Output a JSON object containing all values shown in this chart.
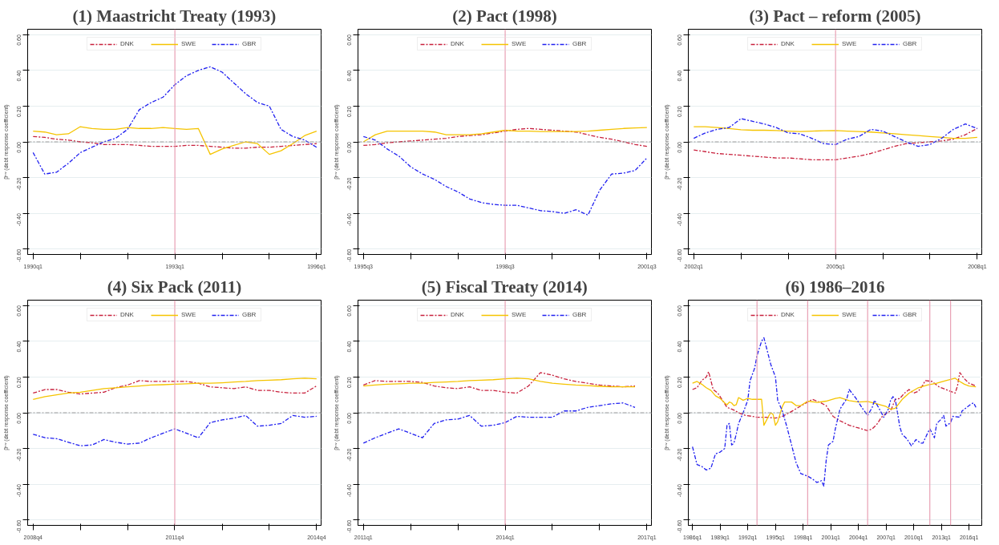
{
  "chart_data": [
    {
      "type": "line",
      "title": "(1) Maastricht Treaty (1993)",
      "ylabel": "βʳʷ (debt response coefficient)",
      "grid": "y",
      "legend": "top",
      "x": [
        "1990-01",
        "1990-04",
        "1990-07",
        "1990-10",
        "1991-01",
        "1991-04",
        "1991-07",
        "1991-10",
        "1992-01",
        "1992-04",
        "1992-07",
        "1992-10",
        "1993-01",
        "1993-04",
        "1993-07",
        "1993-10",
        "1994-01",
        "1994-04",
        "1994-07",
        "1994-10",
        "1995-01",
        "1995-04",
        "1995-07",
        "1995-10",
        "1996-01"
      ],
      "xlim": [
        "1989-11-20",
        "1996-02-05"
      ],
      "xticks": [
        {
          "value": "1990-01",
          "label": "1990q1"
        },
        {
          "value": "1991-01",
          "label": null
        },
        {
          "value": "1992-01",
          "label": null
        },
        {
          "value": "1993-01",
          "label": "1993q1"
        },
        {
          "value": "1994-01",
          "label": null
        },
        {
          "value": "1995-01",
          "label": null
        },
        {
          "value": "1996-01",
          "label": "1996q1"
        }
      ],
      "ylim": [
        -0.63,
        0.63
      ],
      "yticks": [
        {
          "value": -0.6,
          "label": "-0.60"
        },
        {
          "value": -0.4,
          "label": "-0.40"
        },
        {
          "value": -0.2,
          "label": "-0.20"
        },
        {
          "value": 0,
          "label": "0.00"
        },
        {
          "value": 0.2,
          "label": "0.20"
        },
        {
          "value": 0.4,
          "label": "0.40"
        },
        {
          "value": 0.6,
          "label": "0.60"
        }
      ],
      "ref_lines": [
        {
          "axis": "x",
          "value": "1993-01",
          "color": "#e8a0b4",
          "line_style": "solid"
        },
        {
          "axis": "y",
          "value": 0,
          "color": "#999999",
          "line_style": "dashed"
        }
      ],
      "series": [
        {
          "name": "DNK",
          "color": "#c8203c",
          "line_style": "dashed",
          "values": [
            0.03,
            0.025,
            0.015,
            0.01,
            0.0,
            -0.005,
            -0.015,
            -0.015,
            -0.015,
            -0.02,
            -0.025,
            -0.025,
            -0.025,
            -0.02,
            -0.02,
            -0.025,
            -0.03,
            -0.035,
            -0.035,
            -0.03,
            -0.03,
            -0.025,
            -0.02,
            -0.015,
            -0.01
          ]
        },
        {
          "name": "SWE",
          "color": "#f5c400",
          "line_style": "solid",
          "values": [
            0.06,
            0.055,
            0.04,
            0.045,
            0.085,
            0.075,
            0.07,
            0.07,
            0.08,
            0.075,
            0.075,
            0.08,
            0.075,
            0.07,
            0.075,
            -0.07,
            -0.04,
            -0.02,
            0.0,
            -0.01,
            -0.07,
            -0.05,
            -0.01,
            0.035,
            0.06
          ]
        },
        {
          "name": "GBR",
          "color": "#2020f0",
          "line_style": "dashed",
          "values": [
            -0.06,
            -0.18,
            -0.17,
            -0.12,
            -0.06,
            -0.03,
            0.0,
            0.02,
            0.07,
            0.18,
            0.22,
            0.25,
            0.32,
            0.37,
            0.4,
            0.42,
            0.39,
            0.33,
            0.27,
            0.22,
            0.2,
            0.07,
            0.03,
            0.01,
            -0.03
          ]
        }
      ]
    },
    {
      "type": "line",
      "title": "(2) Pact (1998)",
      "ylabel": "βʳʷ (debt response coefficient)",
      "grid": "y",
      "legend": "top",
      "x": [
        "1995-07",
        "1995-10",
        "1996-01",
        "1996-04",
        "1996-07",
        "1996-10",
        "1997-01",
        "1997-04",
        "1997-07",
        "1997-10",
        "1998-01",
        "1998-04",
        "1998-07",
        "1998-10",
        "1999-01",
        "1999-04",
        "1999-07",
        "1999-10",
        "2000-01",
        "2000-04",
        "2000-07",
        "2000-10",
        "2001-01",
        "2001-04",
        "2001-07"
      ],
      "xlim": [
        "1995-05-20",
        "2001-08-05"
      ],
      "xticks": [
        {
          "value": "1995-07",
          "label": "1995q3"
        },
        {
          "value": "1996-07",
          "label": null
        },
        {
          "value": "1997-07",
          "label": null
        },
        {
          "value": "1998-07",
          "label": "1998q3"
        },
        {
          "value": "1999-07",
          "label": null
        },
        {
          "value": "2000-07",
          "label": null
        },
        {
          "value": "2001-07",
          "label": "2001q3"
        }
      ],
      "ylim": [
        -0.63,
        0.63
      ],
      "yticks": [
        {
          "value": -0.6,
          "label": "-0.60"
        },
        {
          "value": -0.4,
          "label": "-0.40"
        },
        {
          "value": -0.2,
          "label": "-0.20"
        },
        {
          "value": 0,
          "label": "0.00"
        },
        {
          "value": 0.2,
          "label": "0.20"
        },
        {
          "value": 0.4,
          "label": "0.40"
        },
        {
          "value": 0.6,
          "label": "0.60"
        }
      ],
      "ref_lines": [
        {
          "axis": "x",
          "value": "1998-07",
          "color": "#e8a0b4",
          "line_style": "solid"
        },
        {
          "axis": "y",
          "value": 0,
          "color": "#999999",
          "line_style": "dashed"
        }
      ],
      "series": [
        {
          "name": "DNK",
          "color": "#c8203c",
          "line_style": "dashed",
          "values": [
            -0.02,
            -0.015,
            -0.005,
            0.0,
            0.005,
            0.01,
            0.015,
            0.02,
            0.03,
            0.035,
            0.04,
            0.05,
            0.06,
            0.07,
            0.075,
            0.07,
            0.065,
            0.06,
            0.055,
            0.04,
            0.025,
            0.015,
            0.0,
            -0.015,
            -0.025
          ]
        },
        {
          "name": "SWE",
          "color": "#f5c400",
          "line_style": "solid",
          "values": [
            0.0,
            0.04,
            0.06,
            0.06,
            0.06,
            0.06,
            0.055,
            0.04,
            0.04,
            0.04,
            0.045,
            0.055,
            0.065,
            0.06,
            0.06,
            0.058,
            0.058,
            0.058,
            0.058,
            0.06,
            0.065,
            0.07,
            0.075,
            0.078,
            0.08
          ]
        },
        {
          "name": "GBR",
          "color": "#2020f0",
          "line_style": "dashed",
          "values": [
            0.03,
            0.01,
            -0.04,
            -0.08,
            -0.14,
            -0.18,
            -0.21,
            -0.25,
            -0.28,
            -0.32,
            -0.34,
            -0.35,
            -0.355,
            -0.355,
            -0.37,
            -0.385,
            -0.39,
            -0.4,
            -0.38,
            -0.41,
            -0.27,
            -0.18,
            -0.175,
            -0.16,
            -0.09
          ]
        }
      ]
    },
    {
      "type": "line",
      "title": "(3) Pact – reform (2005)",
      "ylabel": "βʳʷ (debt response coefficient)",
      "grid": "y",
      "legend": "top",
      "x": [
        "2002-01",
        "2002-04",
        "2002-07",
        "2002-10",
        "2003-01",
        "2003-04",
        "2003-07",
        "2003-10",
        "2004-01",
        "2004-04",
        "2004-07",
        "2004-10",
        "2005-01",
        "2005-04",
        "2005-07",
        "2005-10",
        "2006-01",
        "2006-04",
        "2006-07",
        "2006-10",
        "2007-01",
        "2007-04",
        "2007-07",
        "2007-10",
        "2008-01"
      ],
      "xlim": [
        "2001-11-20",
        "2008-02-05"
      ],
      "xticks": [
        {
          "value": "2002-01",
          "label": "2002q1"
        },
        {
          "value": "2003-01",
          "label": null
        },
        {
          "value": "2004-01",
          "label": null
        },
        {
          "value": "2005-01",
          "label": "2005q1"
        },
        {
          "value": "2006-01",
          "label": null
        },
        {
          "value": "2007-01",
          "label": null
        },
        {
          "value": "2008-01",
          "label": "2008q1"
        }
      ],
      "ylim": [
        -0.63,
        0.63
      ],
      "yticks": [
        {
          "value": -0.6,
          "label": "-0.60"
        },
        {
          "value": -0.4,
          "label": "-0.40"
        },
        {
          "value": -0.2,
          "label": "-0.20"
        },
        {
          "value": 0,
          "label": "0.00"
        },
        {
          "value": 0.2,
          "label": "0.20"
        },
        {
          "value": 0.4,
          "label": "0.40"
        },
        {
          "value": 0.6,
          "label": "0.60"
        }
      ],
      "ref_lines": [
        {
          "axis": "x",
          "value": "2005-01",
          "color": "#e8a0b4",
          "line_style": "solid"
        },
        {
          "axis": "y",
          "value": 0,
          "color": "#999999",
          "line_style": "dashed"
        }
      ],
      "series": [
        {
          "name": "DNK",
          "color": "#c8203c",
          "line_style": "dashed",
          "values": [
            -0.045,
            -0.055,
            -0.065,
            -0.07,
            -0.075,
            -0.08,
            -0.085,
            -0.09,
            -0.09,
            -0.095,
            -0.1,
            -0.1,
            -0.1,
            -0.09,
            -0.08,
            -0.065,
            -0.045,
            -0.025,
            -0.01,
            -0.005,
            0.0,
            0.005,
            0.015,
            0.04,
            0.075
          ]
        },
        {
          "name": "SWE",
          "color": "#f5c400",
          "line_style": "solid",
          "values": [
            0.085,
            0.085,
            0.08,
            0.075,
            0.068,
            0.065,
            0.065,
            0.063,
            0.06,
            0.058,
            0.06,
            0.062,
            0.063,
            0.06,
            0.058,
            0.055,
            0.05,
            0.045,
            0.04,
            0.035,
            0.03,
            0.025,
            0.02,
            0.02,
            0.025
          ]
        },
        {
          "name": "GBR",
          "color": "#2020f0",
          "line_style": "dashed",
          "values": [
            0.02,
            0.05,
            0.07,
            0.08,
            0.13,
            0.115,
            0.1,
            0.08,
            0.05,
            0.045,
            0.02,
            -0.01,
            -0.015,
            0.015,
            0.03,
            0.07,
            0.06,
            0.03,
            0.0,
            -0.025,
            -0.015,
            0.02,
            0.07,
            0.1,
            0.075
          ]
        }
      ]
    },
    {
      "type": "line",
      "title": "(4) Six Pack (2011)",
      "ylabel": "βʳʷ (debt response coefficient)",
      "grid": "y",
      "legend": "top",
      "x": [
        "2008-10",
        "2009-01",
        "2009-04",
        "2009-07",
        "2009-10",
        "2010-01",
        "2010-04",
        "2010-07",
        "2010-10",
        "2011-01",
        "2011-04",
        "2011-07",
        "2011-10",
        "2012-01",
        "2012-04",
        "2012-07",
        "2012-10",
        "2013-01",
        "2013-04",
        "2013-07",
        "2013-10",
        "2014-01",
        "2014-04",
        "2014-07",
        "2014-10"
      ],
      "xlim": [
        "2008-08-20",
        "2014-11-05"
      ],
      "xticks": [
        {
          "value": "2008-10",
          "label": "2008q4"
        },
        {
          "value": "2009-10",
          "label": null
        },
        {
          "value": "2010-10",
          "label": null
        },
        {
          "value": "2011-10",
          "label": "2011q4"
        },
        {
          "value": "2012-10",
          "label": null
        },
        {
          "value": "2013-10",
          "label": null
        },
        {
          "value": "2014-10",
          "label": "2014q4"
        }
      ],
      "ylim": [
        -0.63,
        0.63
      ],
      "yticks": [
        {
          "value": -0.6,
          "label": "-0.60"
        },
        {
          "value": -0.4,
          "label": "-0.40"
        },
        {
          "value": -0.2,
          "label": "-0.20"
        },
        {
          "value": 0,
          "label": "0.00"
        },
        {
          "value": 0.2,
          "label": "0.20"
        },
        {
          "value": 0.4,
          "label": "0.40"
        },
        {
          "value": 0.6,
          "label": "0.60"
        }
      ],
      "ref_lines": [
        {
          "axis": "x",
          "value": "2011-10",
          "color": "#e8a0b4",
          "line_style": "solid"
        },
        {
          "axis": "y",
          "value": 0,
          "color": "#999999",
          "line_style": "dashed"
        }
      ],
      "series": [
        {
          "name": "DNK",
          "color": "#c8203c",
          "line_style": "dashed",
          "values": [
            0.11,
            0.13,
            0.13,
            0.115,
            0.105,
            0.11,
            0.115,
            0.14,
            0.155,
            0.18,
            0.175,
            0.175,
            0.175,
            0.175,
            0.165,
            0.145,
            0.14,
            0.135,
            0.145,
            0.125,
            0.125,
            0.115,
            0.11,
            0.11,
            0.15
          ]
        },
        {
          "name": "SWE",
          "color": "#f5c400",
          "line_style": "solid",
          "values": [
            0.075,
            0.09,
            0.1,
            0.11,
            0.115,
            0.125,
            0.135,
            0.14,
            0.145,
            0.15,
            0.155,
            0.157,
            0.16,
            0.162,
            0.165,
            0.165,
            0.168,
            0.172,
            0.175,
            0.18,
            0.182,
            0.185,
            0.19,
            0.193,
            0.19
          ]
        },
        {
          "name": "GBR",
          "color": "#2020f0",
          "line_style": "dashed",
          "values": [
            -0.12,
            -0.14,
            -0.145,
            -0.165,
            -0.185,
            -0.18,
            -0.15,
            -0.165,
            -0.175,
            -0.17,
            -0.14,
            -0.115,
            -0.09,
            -0.115,
            -0.14,
            -0.055,
            -0.04,
            -0.03,
            -0.015,
            -0.075,
            -0.07,
            -0.06,
            -0.015,
            -0.025,
            -0.02
          ]
        }
      ]
    },
    {
      "type": "line",
      "title": "(5) Fiscal Treaty (2014)",
      "ylabel": "βʳʷ (debt response coefficient)",
      "grid": "y",
      "legend": "top",
      "x": [
        "2011-01",
        "2011-04",
        "2011-07",
        "2011-10",
        "2012-01",
        "2012-04",
        "2012-07",
        "2012-10",
        "2013-01",
        "2013-04",
        "2013-07",
        "2013-10",
        "2014-01",
        "2014-04",
        "2014-07",
        "2014-10",
        "2015-01",
        "2015-04",
        "2015-07",
        "2015-10",
        "2016-01",
        "2016-04",
        "2016-07",
        "2016-10"
      ],
      "xlim": [
        "2010-11-20",
        "2017-02-05"
      ],
      "xticks": [
        {
          "value": "2011-01",
          "label": "2011q1"
        },
        {
          "value": "2012-01",
          "label": null
        },
        {
          "value": "2013-01",
          "label": null
        },
        {
          "value": "2014-01",
          "label": "2014q1"
        },
        {
          "value": "2015-01",
          "label": null
        },
        {
          "value": "2016-01",
          "label": null
        },
        {
          "value": "2017-01",
          "label": "2017q1"
        }
      ],
      "ylim": [
        -0.63,
        0.63
      ],
      "yticks": [
        {
          "value": -0.6,
          "label": "-0.60"
        },
        {
          "value": -0.4,
          "label": "-0.40"
        },
        {
          "value": -0.2,
          "label": "-0.20"
        },
        {
          "value": 0,
          "label": "0.00"
        },
        {
          "value": 0.2,
          "label": "0.20"
        },
        {
          "value": 0.4,
          "label": "0.40"
        },
        {
          "value": 0.6,
          "label": "0.60"
        }
      ],
      "ref_lines": [
        {
          "axis": "x",
          "value": "2014-01",
          "color": "#e8a0b4",
          "line_style": "solid"
        },
        {
          "axis": "y",
          "value": 0,
          "color": "#999999",
          "line_style": "dashed"
        }
      ],
      "series": [
        {
          "name": "DNK",
          "color": "#c8203c",
          "line_style": "dashed",
          "values": [
            0.155,
            0.18,
            0.175,
            0.175,
            0.175,
            0.17,
            0.15,
            0.14,
            0.135,
            0.145,
            0.125,
            0.125,
            0.115,
            0.11,
            0.15,
            0.225,
            0.21,
            0.19,
            0.175,
            0.165,
            0.155,
            0.15,
            0.145,
            0.15
          ]
        },
        {
          "name": "SWE",
          "color": "#f5c400",
          "line_style": "solid",
          "values": [
            0.15,
            0.155,
            0.16,
            0.162,
            0.165,
            0.165,
            0.17,
            0.172,
            0.175,
            0.18,
            0.182,
            0.185,
            0.19,
            0.193,
            0.19,
            0.175,
            0.165,
            0.16,
            0.155,
            0.152,
            0.148,
            0.145,
            0.145,
            0.145
          ]
        },
        {
          "name": "GBR",
          "color": "#2020f0",
          "line_style": "dashed",
          "values": [
            -0.17,
            -0.14,
            -0.115,
            -0.09,
            -0.115,
            -0.14,
            -0.06,
            -0.04,
            -0.035,
            -0.015,
            -0.075,
            -0.07,
            -0.055,
            -0.02,
            -0.025,
            -0.025,
            -0.025,
            0.01,
            0.01,
            0.03,
            0.04,
            0.05,
            0.055,
            0.03
          ]
        }
      ]
    },
    {
      "type": "line",
      "title": "(6) 1986–2016",
      "ylabel": "βʳʷ (debt response coefficient)",
      "grid": "y",
      "legend": "top",
      "xlim": [
        "1985-07-20",
        "2017-05-20"
      ],
      "xticks": [
        {
          "value": "1986-01",
          "label": "1986q1"
        },
        {
          "value": "1989-01",
          "label": "1989q1"
        },
        {
          "value": "1992-01",
          "label": "1992q1"
        },
        {
          "value": "1995-01",
          "label": "1995q1"
        },
        {
          "value": "1998-01",
          "label": "1998q1"
        },
        {
          "value": "2001-01",
          "label": "2001q1"
        },
        {
          "value": "2004-01",
          "label": "2004q1"
        },
        {
          "value": "2007-01",
          "label": "2007q1"
        },
        {
          "value": "2010-01",
          "label": "2010q1"
        },
        {
          "value": "2013-01",
          "label": "2013q1"
        },
        {
          "value": "2016-01",
          "label": "2016q1"
        }
      ],
      "ylim": [
        -0.63,
        0.63
      ],
      "yticks": [
        {
          "value": -0.6,
          "label": "-0.60"
        },
        {
          "value": -0.4,
          "label": "-0.40"
        },
        {
          "value": -0.2,
          "label": "-0.20"
        },
        {
          "value": 0,
          "label": "0.00"
        },
        {
          "value": 0.2,
          "label": "0.20"
        },
        {
          "value": 0.4,
          "label": "0.40"
        },
        {
          "value": 0.6,
          "label": "0.60"
        }
      ],
      "ref_lines": [
        {
          "axis": "x",
          "value": "1993-01",
          "color": "#e8a0b4",
          "line_style": "solid"
        },
        {
          "axis": "x",
          "value": "1998-07",
          "color": "#e8a0b4",
          "line_style": "solid"
        },
        {
          "axis": "x",
          "value": "2005-01",
          "color": "#e8a0b4",
          "line_style": "solid"
        },
        {
          "axis": "x",
          "value": "2011-10",
          "color": "#e8a0b4",
          "line_style": "solid"
        },
        {
          "axis": "x",
          "value": "2014-01",
          "color": "#e8a0b4",
          "line_style": "solid"
        },
        {
          "axis": "y",
          "value": 0,
          "color": "#999999",
          "line_style": "dashed"
        }
      ],
      "series": [
        {
          "name": "DNK",
          "color": "#c8203c",
          "line_style": "dashed",
          "x": [
            "1986-01",
            "1986-07",
            "1987-01",
            "1987-07",
            "1987-10",
            "1988-04",
            "1988-10",
            "1989-04",
            "1989-10",
            "1990-07",
            "1991-01",
            "1991-10",
            "1992-07",
            "1993-01",
            "1994-01",
            "1995-01",
            "1995-10",
            "1996-07",
            "1997-07",
            "1998-07",
            "1999-01",
            "1999-10",
            "2000-07",
            "2001-04",
            "2002-01",
            "2003-01",
            "2004-01",
            "2005-01",
            "2005-07",
            "2006-01",
            "2006-07",
            "2007-01",
            "2007-07",
            "2008-01",
            "2008-07",
            "2009-01",
            "2009-07",
            "2010-01",
            "2010-07",
            "2011-01",
            "2011-04",
            "2012-01",
            "2012-10",
            "2013-04",
            "2013-10",
            "2014-07",
            "2014-10",
            "2015-01",
            "2015-07",
            "2016-01",
            "2016-10"
          ],
          "values": [
            0.13,
            0.14,
            0.18,
            0.2,
            0.23,
            0.13,
            0.11,
            0.07,
            0.03,
            0.015,
            0.0,
            -0.015,
            -0.02,
            -0.025,
            -0.025,
            -0.03,
            -0.02,
            0.0,
            0.03,
            0.06,
            0.075,
            0.06,
            0.04,
            -0.02,
            -0.045,
            -0.07,
            -0.085,
            -0.1,
            -0.09,
            -0.065,
            -0.025,
            -0.005,
            0.01,
            0.075,
            0.08,
            0.11,
            0.13,
            0.11,
            0.12,
            0.155,
            0.18,
            0.175,
            0.145,
            0.135,
            0.125,
            0.11,
            0.15,
            0.225,
            0.19,
            0.165,
            0.15
          ]
        },
        {
          "name": "SWE",
          "color": "#f5c400",
          "line_style": "solid",
          "x": [
            "1986-01",
            "1986-07",
            "1987-01",
            "1987-07",
            "1988-01",
            "1988-07",
            "1989-01",
            "1989-07",
            "1989-10",
            "1990-01",
            "1990-04",
            "1990-07",
            "1990-10",
            "1991-01",
            "1991-07",
            "1992-01",
            "1992-07",
            "1993-01",
            "1993-07",
            "1993-10",
            "1994-04",
            "1994-07",
            "1994-10",
            "1995-01",
            "1995-04",
            "1995-10",
            "1996-01",
            "1996-10",
            "1997-04",
            "1997-10",
            "1998-07",
            "1999-07",
            "2000-07",
            "2001-07",
            "2002-01",
            "2003-01",
            "2004-01",
            "2005-01",
            "2006-01",
            "2007-01",
            "2007-07",
            "2008-01",
            "2008-10",
            "2009-07",
            "2010-07",
            "2011-07",
            "2012-07",
            "2013-07",
            "2014-04",
            "2014-07",
            "2015-01",
            "2015-07",
            "2016-01",
            "2016-10"
          ],
          "values": [
            0.165,
            0.175,
            0.16,
            0.14,
            0.125,
            0.095,
            0.08,
            0.055,
            0.045,
            0.06,
            0.055,
            0.04,
            0.045,
            0.085,
            0.07,
            0.08,
            0.075,
            0.075,
            0.075,
            -0.07,
            -0.02,
            0.0,
            -0.01,
            -0.07,
            -0.05,
            0.035,
            0.06,
            0.06,
            0.04,
            0.04,
            0.065,
            0.058,
            0.065,
            0.08,
            0.085,
            0.068,
            0.06,
            0.063,
            0.05,
            0.035,
            0.02,
            0.025,
            0.075,
            0.11,
            0.14,
            0.155,
            0.165,
            0.18,
            0.19,
            0.193,
            0.175,
            0.16,
            0.15,
            0.145
          ]
        },
        {
          "name": "GBR",
          "color": "#2020f0",
          "line_style": "dashed",
          "x": [
            "1986-01",
            "1986-07",
            "1987-01",
            "1987-07",
            "1988-01",
            "1988-07",
            "1989-01",
            "1989-07",
            "1989-10",
            "1990-01",
            "1990-04",
            "1990-07",
            "1990-10",
            "1991-01",
            "1991-07",
            "1992-01",
            "1992-04",
            "1992-10",
            "1993-01",
            "1993-07",
            "1993-10",
            "1994-07",
            "1995-01",
            "1995-04",
            "1995-10",
            "1996-04",
            "1996-10",
            "1997-04",
            "1997-10",
            "1998-07",
            "1999-01",
            "1999-07",
            "2000-01",
            "2000-04",
            "2000-07",
            "2000-10",
            "2001-04",
            "2001-07",
            "2002-01",
            "2002-10",
            "2003-01",
            "2003-10",
            "2004-07",
            "2005-01",
            "2005-07",
            "2005-10",
            "2006-07",
            "2006-10",
            "2007-04",
            "2007-07",
            "2007-10",
            "2008-01",
            "2008-07",
            "2008-10",
            "2009-04",
            "2009-10",
            "2010-04",
            "2010-10",
            "2011-01",
            "2011-07",
            "2011-10",
            "2012-04",
            "2012-07",
            "2013-01",
            "2013-04",
            "2013-07",
            "2014-01",
            "2014-04",
            "2015-01",
            "2015-04",
            "2015-10",
            "2016-04",
            "2016-07",
            "2016-10"
          ],
          "values": [
            -0.19,
            -0.29,
            -0.3,
            -0.32,
            -0.31,
            -0.23,
            -0.22,
            -0.2,
            -0.07,
            -0.06,
            -0.18,
            -0.17,
            -0.12,
            -0.06,
            0.0,
            0.07,
            0.18,
            0.25,
            0.32,
            0.4,
            0.42,
            0.27,
            0.2,
            0.07,
            0.01,
            -0.08,
            -0.18,
            -0.28,
            -0.34,
            -0.355,
            -0.37,
            -0.39,
            -0.38,
            -0.41,
            -0.27,
            -0.18,
            -0.16,
            -0.09,
            0.02,
            0.08,
            0.13,
            0.08,
            0.02,
            -0.015,
            0.03,
            0.07,
            0.0,
            -0.025,
            0.02,
            0.07,
            0.09,
            0.075,
            -0.08,
            -0.12,
            -0.145,
            -0.185,
            -0.15,
            -0.17,
            -0.17,
            -0.115,
            -0.09,
            -0.14,
            -0.06,
            -0.035,
            -0.015,
            -0.075,
            -0.055,
            -0.02,
            -0.025,
            0.01,
            0.03,
            0.05,
            0.055,
            0.03
          ]
        }
      ]
    }
  ]
}
